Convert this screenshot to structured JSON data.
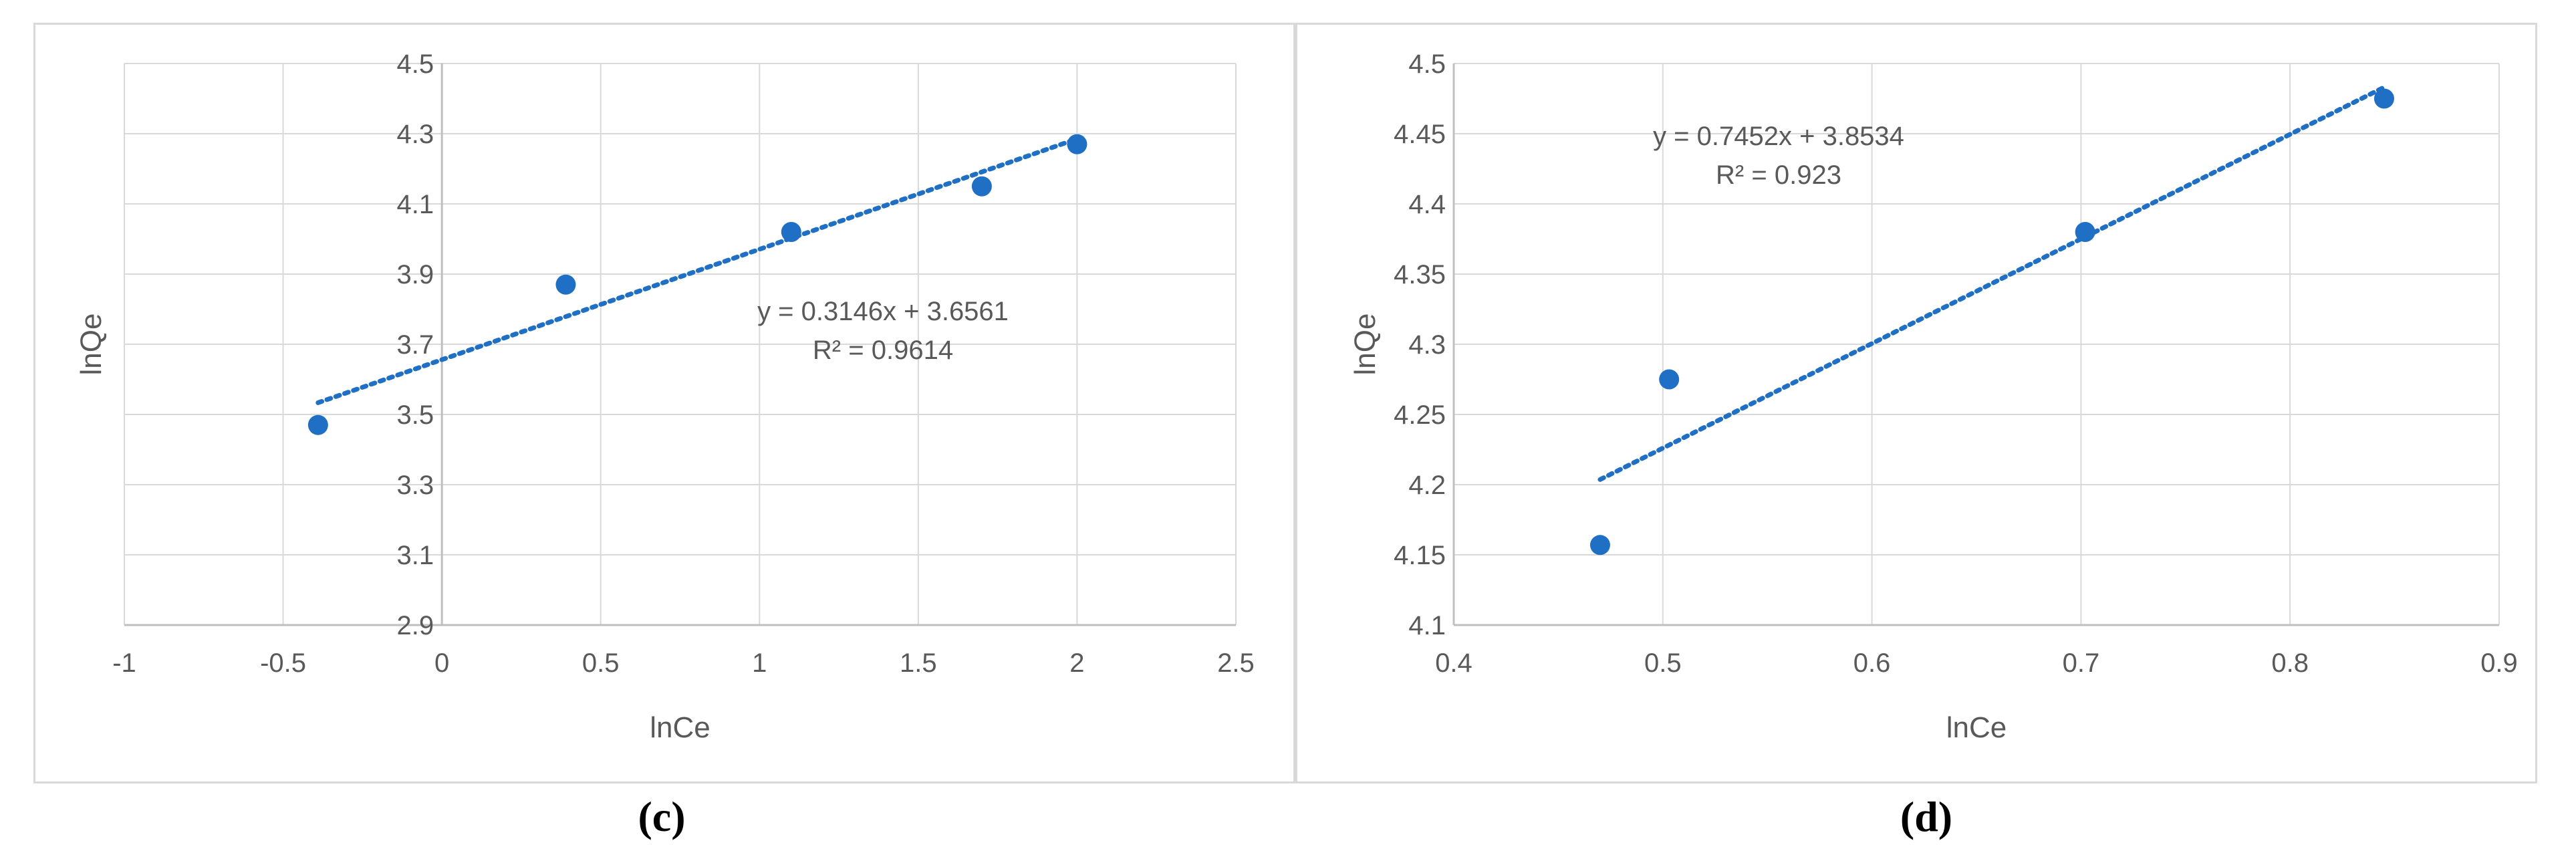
{
  "chart_data": [
    {
      "panel": "c",
      "type": "scatter",
      "caption": "(c)",
      "xlabel": "lnCe",
      "ylabel": "lnQe",
      "xlim": [
        -1,
        2.5
      ],
      "ylim": [
        2.9,
        4.5
      ],
      "xticks": [
        "-1",
        "-0.5",
        "0",
        "0.5",
        "1",
        "1.5",
        "2",
        "2.5"
      ],
      "yticks": [
        "2.9",
        "3.1",
        "3.3",
        "3.5",
        "3.7",
        "3.9",
        "4.1",
        "4.3",
        "4.5"
      ],
      "grid": true,
      "color": "#1f6fc5",
      "points": [
        {
          "x": -0.39,
          "y": 3.47
        },
        {
          "x": 0.39,
          "y": 3.87
        },
        {
          "x": 1.1,
          "y": 4.02
        },
        {
          "x": 1.7,
          "y": 4.15
        },
        {
          "x": 2.0,
          "y": 4.27
        }
      ],
      "trendline": {
        "slope": 0.3146,
        "intercept": 3.6561,
        "x_range": [
          -0.39,
          2.0
        ]
      },
      "equation": "y = 0.3146x + 3.6561",
      "r2": "R² = 0.9614"
    },
    {
      "panel": "d",
      "type": "scatter",
      "caption": "(d)",
      "xlabel": "lnCe",
      "ylabel": "lnQe",
      "xlim": [
        0.4,
        0.9
      ],
      "ylim": [
        4.1,
        4.5
      ],
      "xticks": [
        "0.4",
        "0.5",
        "0.6",
        "0.7",
        "0.8",
        "0.9"
      ],
      "yticks": [
        "4.1",
        "4.15",
        "4.2",
        "4.25",
        "4.3",
        "4.35",
        "4.4",
        "4.45",
        "4.5"
      ],
      "grid": true,
      "color": "#1f6fc5",
      "points": [
        {
          "x": 0.47,
          "y": 4.157
        },
        {
          "x": 0.503,
          "y": 4.275
        },
        {
          "x": 0.702,
          "y": 4.38
        },
        {
          "x": 0.845,
          "y": 4.475
        }
      ],
      "trendline": {
        "slope": 0.7452,
        "intercept": 3.8534,
        "x_range": [
          0.47,
          0.845
        ]
      },
      "equation": "y = 0.7452x + 3.8534",
      "r2": "R² = 0.923"
    }
  ]
}
